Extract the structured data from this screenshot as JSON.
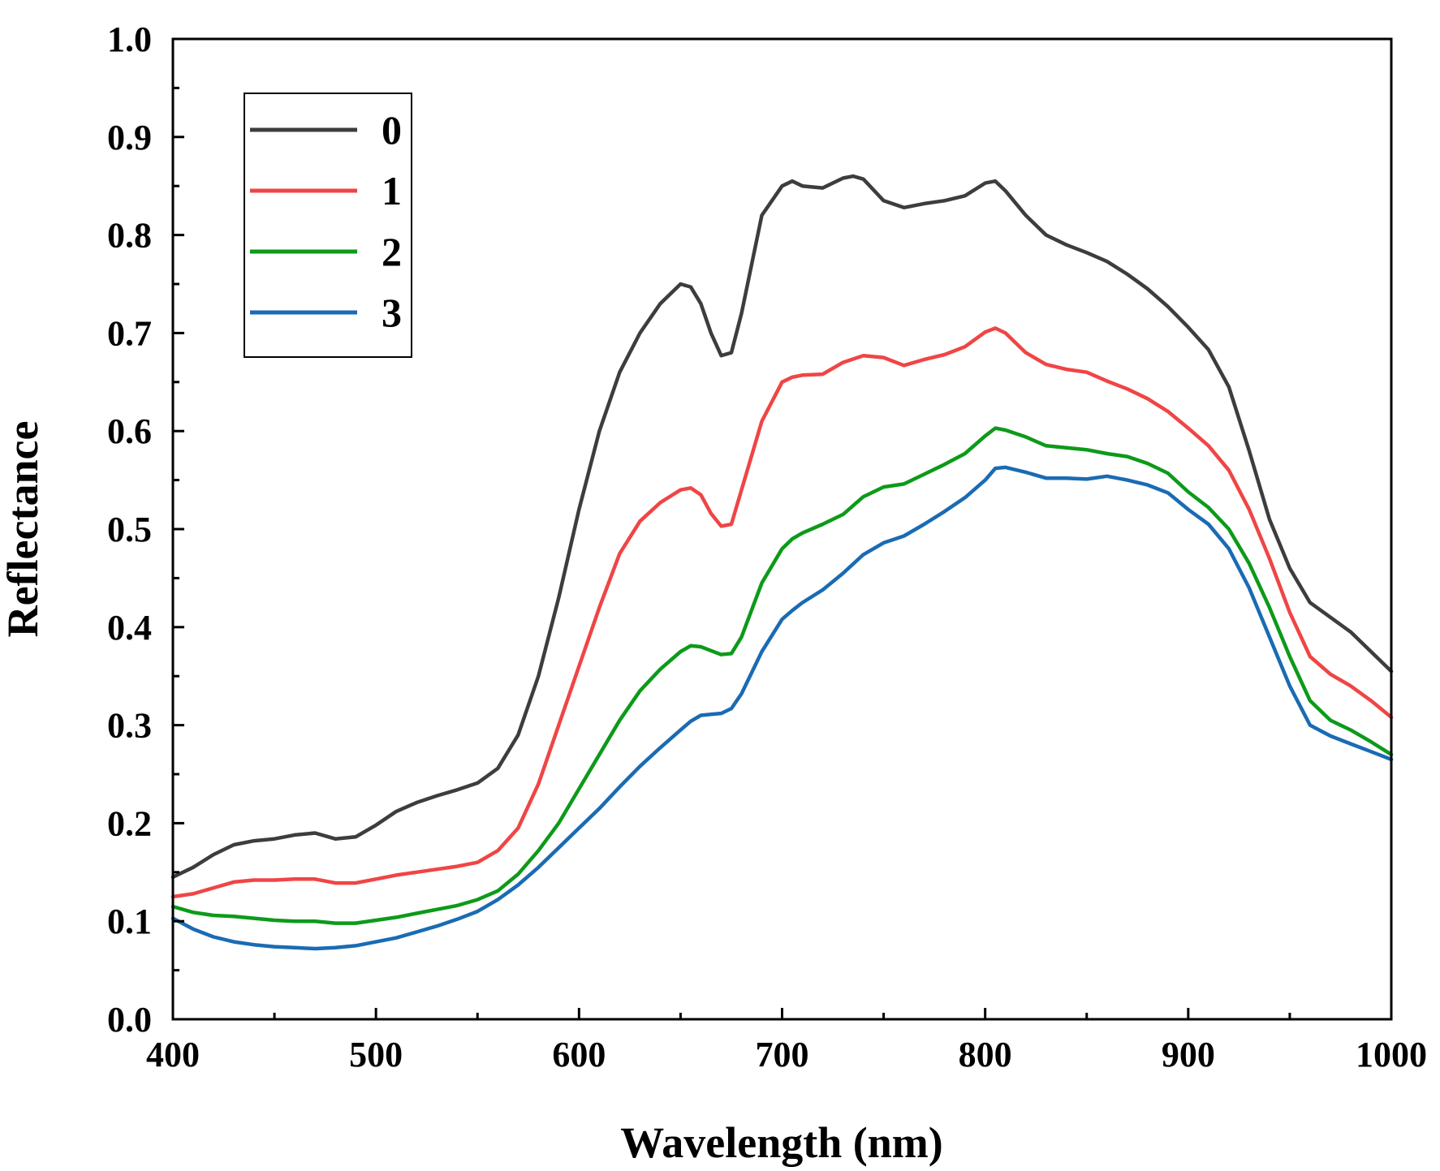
{
  "chart_data": {
    "type": "line",
    "title": "",
    "xlabel": "Wavelength (nm)",
    "ylabel": "Reflectance",
    "xlim": [
      400,
      1000
    ],
    "ylim": [
      0.0,
      1.0
    ],
    "xticks": [
      "400",
      "500",
      "600",
      "700",
      "800",
      "900",
      "1000"
    ],
    "yticks": [
      "0.0",
      "0.1",
      "0.2",
      "0.3",
      "0.4",
      "0.5",
      "0.6",
      "0.7",
      "0.8",
      "0.9",
      "1.0"
    ],
    "grid": false,
    "legend_position": "top-left",
    "series": [
      {
        "name": "0",
        "color": "#3d3d3d",
        "x": [
          400,
          410,
          420,
          430,
          440,
          450,
          460,
          470,
          480,
          490,
          500,
          510,
          520,
          530,
          540,
          550,
          560,
          570,
          580,
          590,
          600,
          610,
          620,
          630,
          640,
          650,
          655,
          660,
          665,
          670,
          675,
          680,
          690,
          700,
          705,
          710,
          720,
          730,
          735,
          740,
          750,
          760,
          770,
          780,
          790,
          800,
          805,
          810,
          820,
          830,
          840,
          850,
          860,
          870,
          880,
          890,
          900,
          910,
          920,
          930,
          940,
          950,
          960,
          970,
          980,
          990,
          1000
        ],
        "values": [
          0.145,
          0.155,
          0.168,
          0.178,
          0.182,
          0.184,
          0.188,
          0.19,
          0.184,
          0.186,
          0.198,
          0.212,
          0.221,
          0.228,
          0.234,
          0.241,
          0.256,
          0.29,
          0.35,
          0.43,
          0.52,
          0.6,
          0.66,
          0.7,
          0.73,
          0.75,
          0.747,
          0.73,
          0.7,
          0.677,
          0.68,
          0.72,
          0.82,
          0.85,
          0.855,
          0.85,
          0.848,
          0.858,
          0.86,
          0.857,
          0.835,
          0.828,
          0.832,
          0.835,
          0.84,
          0.853,
          0.855,
          0.845,
          0.82,
          0.8,
          0.79,
          0.782,
          0.773,
          0.76,
          0.745,
          0.727,
          0.706,
          0.683,
          0.645,
          0.58,
          0.51,
          0.46,
          0.425,
          0.41,
          0.395,
          0.375,
          0.355
        ]
      },
      {
        "name": "1",
        "color": "#f04545",
        "x": [
          400,
          410,
          420,
          430,
          440,
          450,
          460,
          470,
          480,
          490,
          500,
          510,
          520,
          530,
          540,
          550,
          560,
          570,
          580,
          590,
          600,
          610,
          620,
          630,
          640,
          650,
          655,
          660,
          665,
          670,
          675,
          680,
          690,
          700,
          705,
          710,
          720,
          730,
          740,
          750,
          760,
          770,
          780,
          790,
          800,
          805,
          810,
          820,
          830,
          840,
          850,
          860,
          870,
          880,
          890,
          900,
          910,
          920,
          930,
          940,
          950,
          960,
          970,
          980,
          990,
          1000
        ],
        "values": [
          0.125,
          0.128,
          0.134,
          0.14,
          0.142,
          0.142,
          0.143,
          0.143,
          0.139,
          0.139,
          0.143,
          0.147,
          0.15,
          0.153,
          0.156,
          0.16,
          0.172,
          0.195,
          0.24,
          0.3,
          0.36,
          0.42,
          0.475,
          0.508,
          0.527,
          0.54,
          0.542,
          0.535,
          0.516,
          0.503,
          0.505,
          0.54,
          0.61,
          0.65,
          0.655,
          0.657,
          0.658,
          0.67,
          0.677,
          0.675,
          0.667,
          0.673,
          0.678,
          0.686,
          0.701,
          0.705,
          0.7,
          0.68,
          0.668,
          0.663,
          0.66,
          0.651,
          0.643,
          0.633,
          0.62,
          0.603,
          0.585,
          0.56,
          0.52,
          0.47,
          0.415,
          0.37,
          0.352,
          0.34,
          0.325,
          0.308
        ]
      },
      {
        "name": "2",
        "color": "#0d9a1a",
        "x": [
          400,
          410,
          420,
          430,
          440,
          450,
          460,
          470,
          480,
          490,
          500,
          510,
          520,
          530,
          540,
          550,
          560,
          570,
          580,
          590,
          600,
          610,
          620,
          630,
          640,
          650,
          655,
          660,
          665,
          670,
          675,
          680,
          690,
          700,
          705,
          710,
          720,
          730,
          740,
          750,
          760,
          770,
          780,
          790,
          800,
          805,
          810,
          820,
          830,
          840,
          850,
          860,
          870,
          880,
          890,
          900,
          910,
          920,
          930,
          940,
          950,
          960,
          970,
          980,
          990,
          1000
        ],
        "values": [
          0.115,
          0.109,
          0.106,
          0.105,
          0.103,
          0.101,
          0.1,
          0.1,
          0.098,
          0.098,
          0.101,
          0.104,
          0.108,
          0.112,
          0.116,
          0.122,
          0.131,
          0.148,
          0.172,
          0.2,
          0.235,
          0.27,
          0.305,
          0.335,
          0.357,
          0.375,
          0.381,
          0.38,
          0.376,
          0.372,
          0.373,
          0.39,
          0.445,
          0.48,
          0.49,
          0.496,
          0.505,
          0.515,
          0.533,
          0.543,
          0.546,
          0.556,
          0.566,
          0.577,
          0.595,
          0.603,
          0.601,
          0.594,
          0.585,
          0.583,
          0.581,
          0.577,
          0.574,
          0.567,
          0.557,
          0.538,
          0.522,
          0.5,
          0.465,
          0.42,
          0.37,
          0.325,
          0.305,
          0.295,
          0.283,
          0.27
        ]
      },
      {
        "name": "3",
        "color": "#1a6bb3",
        "x": [
          400,
          410,
          420,
          430,
          440,
          450,
          460,
          470,
          480,
          490,
          500,
          510,
          520,
          530,
          540,
          550,
          560,
          570,
          580,
          590,
          600,
          610,
          620,
          630,
          640,
          650,
          655,
          660,
          665,
          670,
          675,
          680,
          690,
          700,
          705,
          710,
          720,
          730,
          740,
          750,
          760,
          770,
          780,
          790,
          800,
          805,
          810,
          820,
          830,
          840,
          850,
          860,
          870,
          880,
          890,
          900,
          910,
          920,
          930,
          940,
          950,
          960,
          970,
          980,
          990,
          1000
        ],
        "values": [
          0.103,
          0.092,
          0.084,
          0.079,
          0.076,
          0.074,
          0.073,
          0.072,
          0.073,
          0.075,
          0.079,
          0.083,
          0.089,
          0.095,
          0.102,
          0.11,
          0.122,
          0.137,
          0.155,
          0.175,
          0.195,
          0.215,
          0.237,
          0.258,
          0.277,
          0.295,
          0.304,
          0.31,
          0.311,
          0.312,
          0.317,
          0.332,
          0.375,
          0.408,
          0.417,
          0.425,
          0.438,
          0.455,
          0.474,
          0.486,
          0.493,
          0.505,
          0.518,
          0.532,
          0.55,
          0.562,
          0.563,
          0.558,
          0.552,
          0.552,
          0.551,
          0.554,
          0.55,
          0.545,
          0.537,
          0.52,
          0.505,
          0.48,
          0.44,
          0.39,
          0.34,
          0.3,
          0.289,
          0.281,
          0.273,
          0.265
        ]
      }
    ]
  }
}
